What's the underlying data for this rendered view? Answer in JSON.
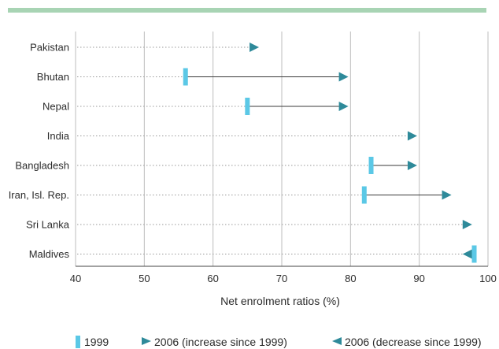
{
  "chart_data": {
    "type": "dumbbell",
    "xlabel": "Net enrolment ratios (%)",
    "xlim": [
      40,
      100
    ],
    "xticks": [
      40,
      50,
      60,
      70,
      80,
      90,
      100
    ],
    "grid": "vertical",
    "legend_position": "bottom",
    "legend": {
      "item_1999": "1999",
      "item_increase": "2006 (increase since 1999)",
      "item_decrease": "2006 (decrease since 1999)"
    },
    "colors": {
      "top_band": "#a8d4b4",
      "marker_1999": "#5bc8e6",
      "marker_2006": "#2e8a9a",
      "connector": "#3a3a3a",
      "grid": "#bdbdbd",
      "dotted_guide": "#9a9a9a"
    },
    "categories": [
      "Pakistan",
      "Bhutan",
      "Nepal",
      "India",
      "Bangladesh",
      "Iran, Isl. Rep.",
      "Sri Lanka",
      "Maldives"
    ],
    "series": [
      {
        "name": "1999",
        "values": [
          null,
          56,
          65,
          null,
          83,
          82,
          null,
          98
        ]
      },
      {
        "name": "2006",
        "values": [
          66,
          79,
          79,
          89,
          89,
          94,
          97,
          97
        ]
      }
    ]
  }
}
